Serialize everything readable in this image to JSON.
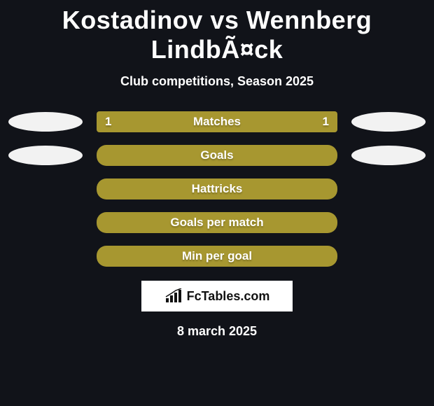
{
  "background_color": "#111319",
  "title_text": "Kostadinov vs Wennberg LindbÃ¤ck",
  "title_color": "#ffffff",
  "title_fontsize": 36,
  "subtitle_text": "Club competitions, Season 2025",
  "subtitle_color": "#ffffff",
  "subtitle_fontsize": 18,
  "ellipse_color": "#f2f2f2",
  "bar_label_color": "#ffffff",
  "bar_label_fontsize": 17,
  "rows": [
    {
      "label": "Matches",
      "left_value": "1",
      "right_value": "1",
      "bar_color": "#a79730",
      "bar_radius": "square",
      "show_left_ellipse": true,
      "show_right_ellipse": true
    },
    {
      "label": "Goals",
      "left_value": "",
      "right_value": "",
      "bar_color": "#a79730",
      "bar_radius": "round",
      "show_left_ellipse": true,
      "show_right_ellipse": true
    },
    {
      "label": "Hattricks",
      "left_value": "",
      "right_value": "",
      "bar_color": "#a79730",
      "bar_radius": "round",
      "show_left_ellipse": false,
      "show_right_ellipse": false
    },
    {
      "label": "Goals per match",
      "left_value": "",
      "right_value": "",
      "bar_color": "#a79730",
      "bar_radius": "round",
      "show_left_ellipse": false,
      "show_right_ellipse": false
    },
    {
      "label": "Min per goal",
      "left_value": "",
      "right_value": "",
      "bar_color": "#a79730",
      "bar_radius": "round",
      "show_left_ellipse": false,
      "show_right_ellipse": false
    }
  ],
  "logo": {
    "text": "FcTables.com",
    "text_color": "#111111",
    "box_bg": "#ffffff",
    "icon_color": "#111111"
  },
  "date_text": "8 march 2025",
  "date_color": "#ffffff",
  "date_fontsize": 18
}
